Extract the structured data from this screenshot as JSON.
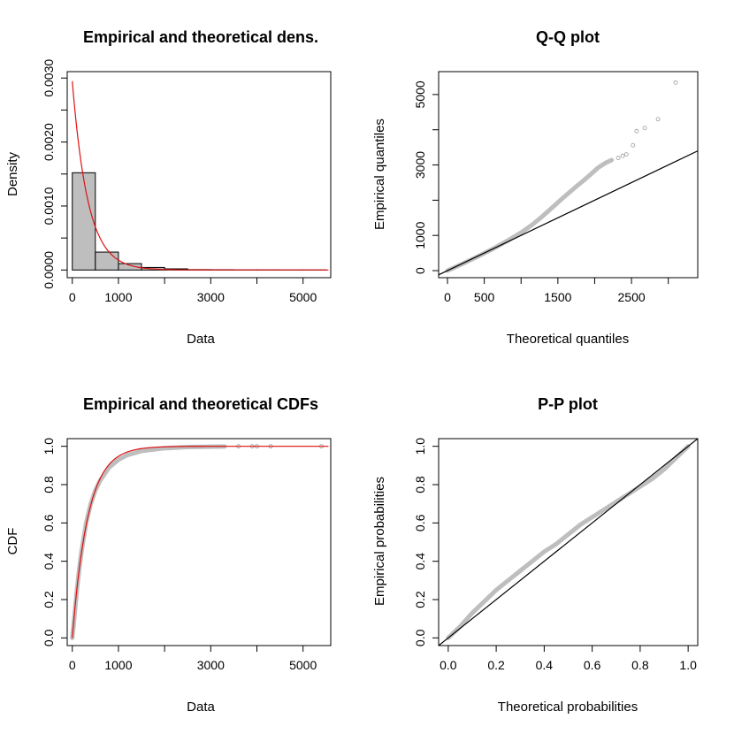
{
  "colors": {
    "fit": "#dd1111",
    "empirical": "#bebebe",
    "bar_fill": "#bebebe",
    "line": "#000000"
  },
  "chart_data": [
    {
      "type": "bar",
      "title": "Empirical and theoretical dens.",
      "xlabel": "Data",
      "ylabel": "Density",
      "xlim": [
        -110,
        5600
      ],
      "ylim": [
        -0.00012,
        0.0031
      ],
      "x_ticks": [
        0,
        1000,
        3000,
        5000
      ],
      "x_ticks_unlabeled": [
        2000,
        4000
      ],
      "y_ticks": [
        0.0,
        0.001,
        0.002,
        0.003
      ],
      "y_tick_labels": [
        "0.0000",
        "0.0010",
        "0.0020",
        "0.0030"
      ],
      "y_ticks_unlabeled": [
        0.0005,
        0.0015,
        0.0025
      ],
      "histogram": {
        "bin_edges": [
          0,
          500,
          1000,
          1500,
          2000,
          2500,
          3000,
          3500,
          4000,
          4500,
          5000,
          5500
        ],
        "density": [
          0.00152,
          0.00028,
          0.0001,
          4e-05,
          1.8e-05,
          6e-06,
          4e-06,
          2e-06,
          2e-06,
          1e-06,
          1e-06
        ]
      },
      "fitted_curve": {
        "distribution": "exponential",
        "rate": 0.00295
      }
    },
    {
      "type": "scatter",
      "title": "Q-Q plot",
      "xlabel": "Theoretical quantiles",
      "ylabel": "Empirical quantiles",
      "xlim": [
        -120,
        3400
      ],
      "ylim": [
        -200,
        5650
      ],
      "x_ticks": [
        0,
        500,
        1500,
        2500
      ],
      "x_ticks_unlabeled": [
        1000,
        2000,
        3000
      ],
      "y_ticks": [
        0,
        1000,
        3000,
        5000
      ],
      "y_ticks_unlabeled": [
        2000,
        4000
      ],
      "reference_line": {
        "from": [
          -120,
          -120
        ],
        "to": [
          3400,
          3400
        ]
      },
      "curve_points": {
        "x": [
          0,
          200,
          400,
          600,
          800,
          1000,
          1150,
          1300,
          1450,
          1550,
          1650,
          1750,
          1850,
          1950,
          2050,
          2150,
          2230
        ],
        "y": [
          0,
          190,
          390,
          600,
          830,
          1080,
          1300,
          1560,
          1840,
          2030,
          2210,
          2390,
          2560,
          2740,
          2930,
          3060,
          3140
        ]
      },
      "tail_points": {
        "x": [
          2320,
          2380,
          2430,
          2520,
          2570,
          2680,
          2860,
          3100
        ],
        "y": [
          3200,
          3260,
          3300,
          3560,
          3960,
          4050,
          4300,
          5340
        ]
      }
    },
    {
      "type": "line",
      "title": "Empirical and theoretical CDFs",
      "xlabel": "Data",
      "ylabel": "CDF",
      "xlim": [
        -110,
        5600
      ],
      "ylim": [
        -0.04,
        1.04
      ],
      "x_ticks": [
        0,
        1000,
        3000,
        5000
      ],
      "x_ticks_unlabeled": [
        2000,
        4000
      ],
      "y_ticks": [
        0.0,
        0.2,
        0.4,
        0.6,
        0.8,
        1.0
      ],
      "y_tick_labels": [
        "0.0",
        "0.2",
        "0.4",
        "0.6",
        "0.8",
        "1.0"
      ],
      "empirical_cdf": {
        "x": [
          0,
          50,
          100,
          150,
          200,
          300,
          400,
          500,
          600,
          800,
          1000,
          1200,
          1500,
          2000,
          2500,
          3000,
          3300
        ],
        "y": [
          0,
          0.12,
          0.25,
          0.36,
          0.45,
          0.6,
          0.7,
          0.77,
          0.82,
          0.89,
          0.93,
          0.955,
          0.975,
          0.99,
          0.996,
          0.998,
          0.999
        ]
      },
      "tail_points": {
        "x": [
          3600,
          3900,
          4000,
          4300,
          5400
        ],
        "y": [
          1.0,
          1.0,
          1.0,
          1.0,
          1.0
        ]
      },
      "fitted_curve": {
        "distribution": "exponential",
        "rate": 0.00295,
        "x_max": 5550
      }
    },
    {
      "type": "scatter",
      "title": "P-P plot",
      "xlabel": "Theoretical probabilities",
      "ylabel": "Empirical probabilities",
      "xlim": [
        -0.04,
        1.04
      ],
      "ylim": [
        -0.04,
        1.04
      ],
      "x_ticks": [
        0.0,
        0.2,
        0.4,
        0.6,
        0.8,
        1.0
      ],
      "x_tick_labels": [
        "0.0",
        "0.2",
        "0.4",
        "0.6",
        "0.8",
        "1.0"
      ],
      "y_ticks": [
        0.0,
        0.2,
        0.4,
        0.6,
        0.8,
        1.0
      ],
      "y_tick_labels": [
        "0.0",
        "0.2",
        "0.4",
        "0.6",
        "0.8",
        "1.0"
      ],
      "reference_line": {
        "from": [
          -0.04,
          -0.04
        ],
        "to": [
          1.04,
          1.04
        ]
      },
      "curve_points": {
        "x": [
          0,
          0.05,
          0.1,
          0.15,
          0.2,
          0.25,
          0.3,
          0.35,
          0.4,
          0.45,
          0.5,
          0.55,
          0.6,
          0.65,
          0.7,
          0.75,
          0.8,
          0.85,
          0.9,
          0.95,
          1.0
        ],
        "y": [
          0,
          0.06,
          0.13,
          0.19,
          0.25,
          0.3,
          0.35,
          0.4,
          0.45,
          0.49,
          0.54,
          0.59,
          0.63,
          0.67,
          0.71,
          0.75,
          0.79,
          0.83,
          0.88,
          0.94,
          1.0
        ]
      }
    }
  ]
}
